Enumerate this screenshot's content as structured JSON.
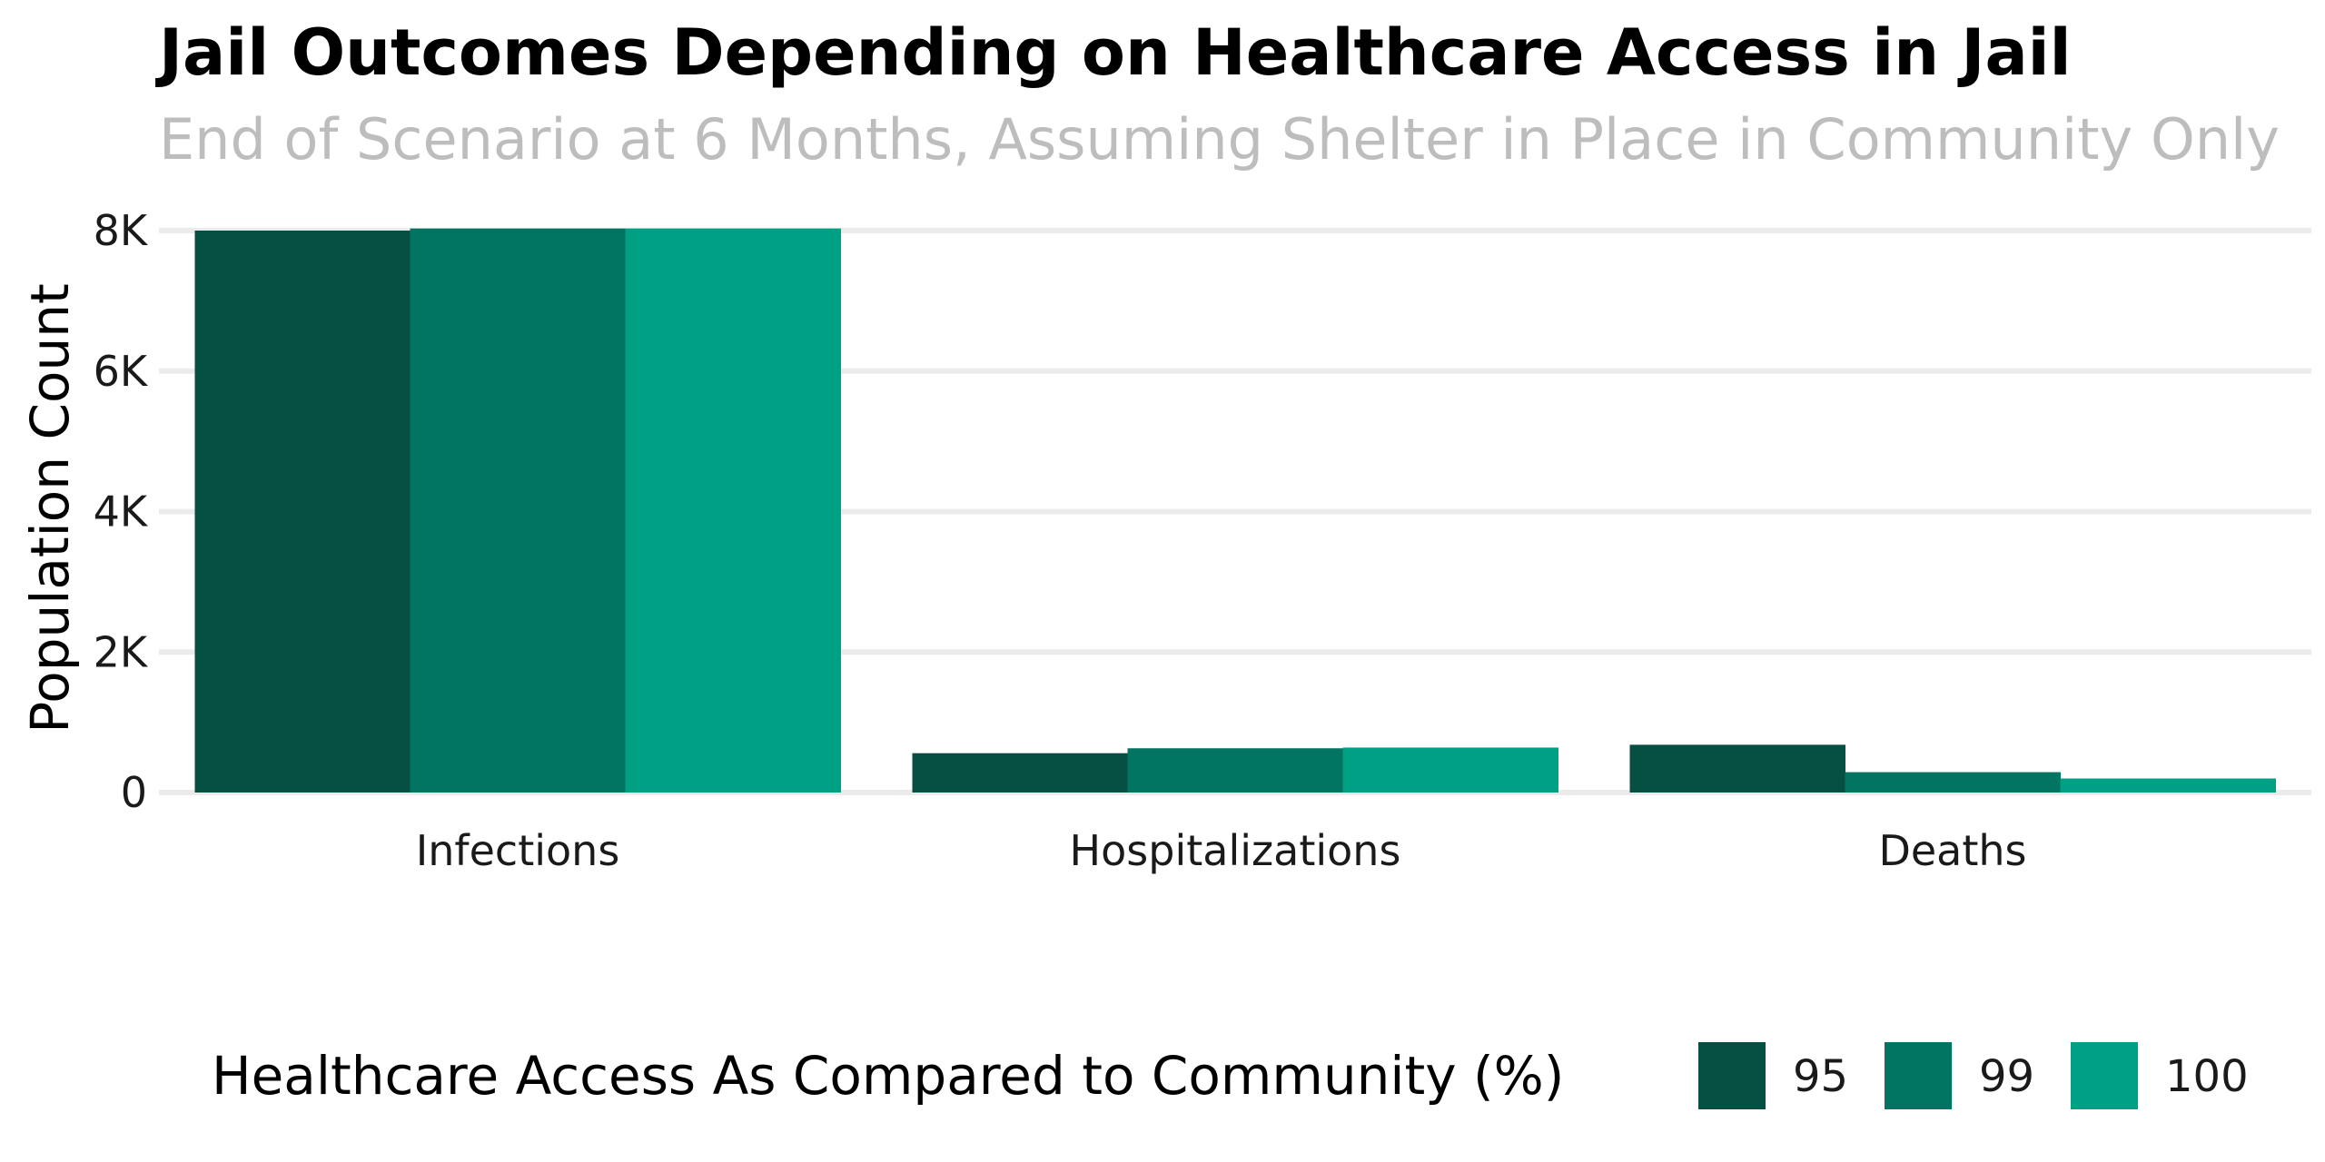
{
  "chart_data": {
    "type": "bar",
    "title": "Jail Outcomes Depending on Healthcare Access in Jail",
    "subtitle": "End of Scenario at 6 Months, Assuming Shelter in Place in Community Only",
    "xlabel": "",
    "ylabel": "Population Count",
    "categories": [
      "Infections",
      "Hospitalizations",
      "Deaths"
    ],
    "series": [
      {
        "name": "95",
        "color": "#055043",
        "values": [
          8000,
          560,
          680
        ]
      },
      {
        "name": "99",
        "color": "#017562",
        "values": [
          8030,
          630,
          290
        ]
      },
      {
        "name": "100",
        "color": "#00a085",
        "values": [
          8030,
          640,
          200
        ]
      }
    ],
    "ylim": [
      0,
      8000
    ],
    "yticks": [
      {
        "value": 0,
        "label": "0"
      },
      {
        "value": 2000,
        "label": "2K"
      },
      {
        "value": 4000,
        "label": "4K"
      },
      {
        "value": 6000,
        "label": "6K"
      },
      {
        "value": 8000,
        "label": "8K"
      }
    ],
    "grid": true,
    "legend": {
      "title": "Healthcare Access As Compared to Community (%)",
      "position": "bottom"
    }
  }
}
